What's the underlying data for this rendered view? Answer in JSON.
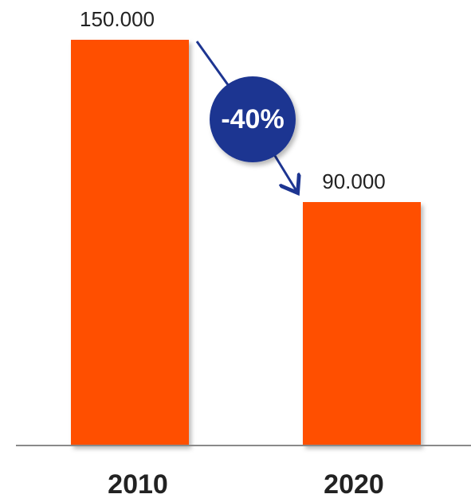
{
  "chart_data": {
    "type": "bar",
    "categories": [
      "2010",
      "2020"
    ],
    "values": [
      150000,
      90000
    ],
    "value_labels": [
      "150.000",
      "90.000"
    ],
    "ylim": [
      0,
      150000
    ],
    "grid": false,
    "title": "",
    "xlabel": "",
    "ylabel": "",
    "annotation": {
      "text": "-40%",
      "from": "2010",
      "to": "2020"
    },
    "colors": {
      "bar": "#ff5000",
      "badge": "#1d3591",
      "arrow": "#1d3591",
      "baseline": "#8a8a8a"
    }
  }
}
